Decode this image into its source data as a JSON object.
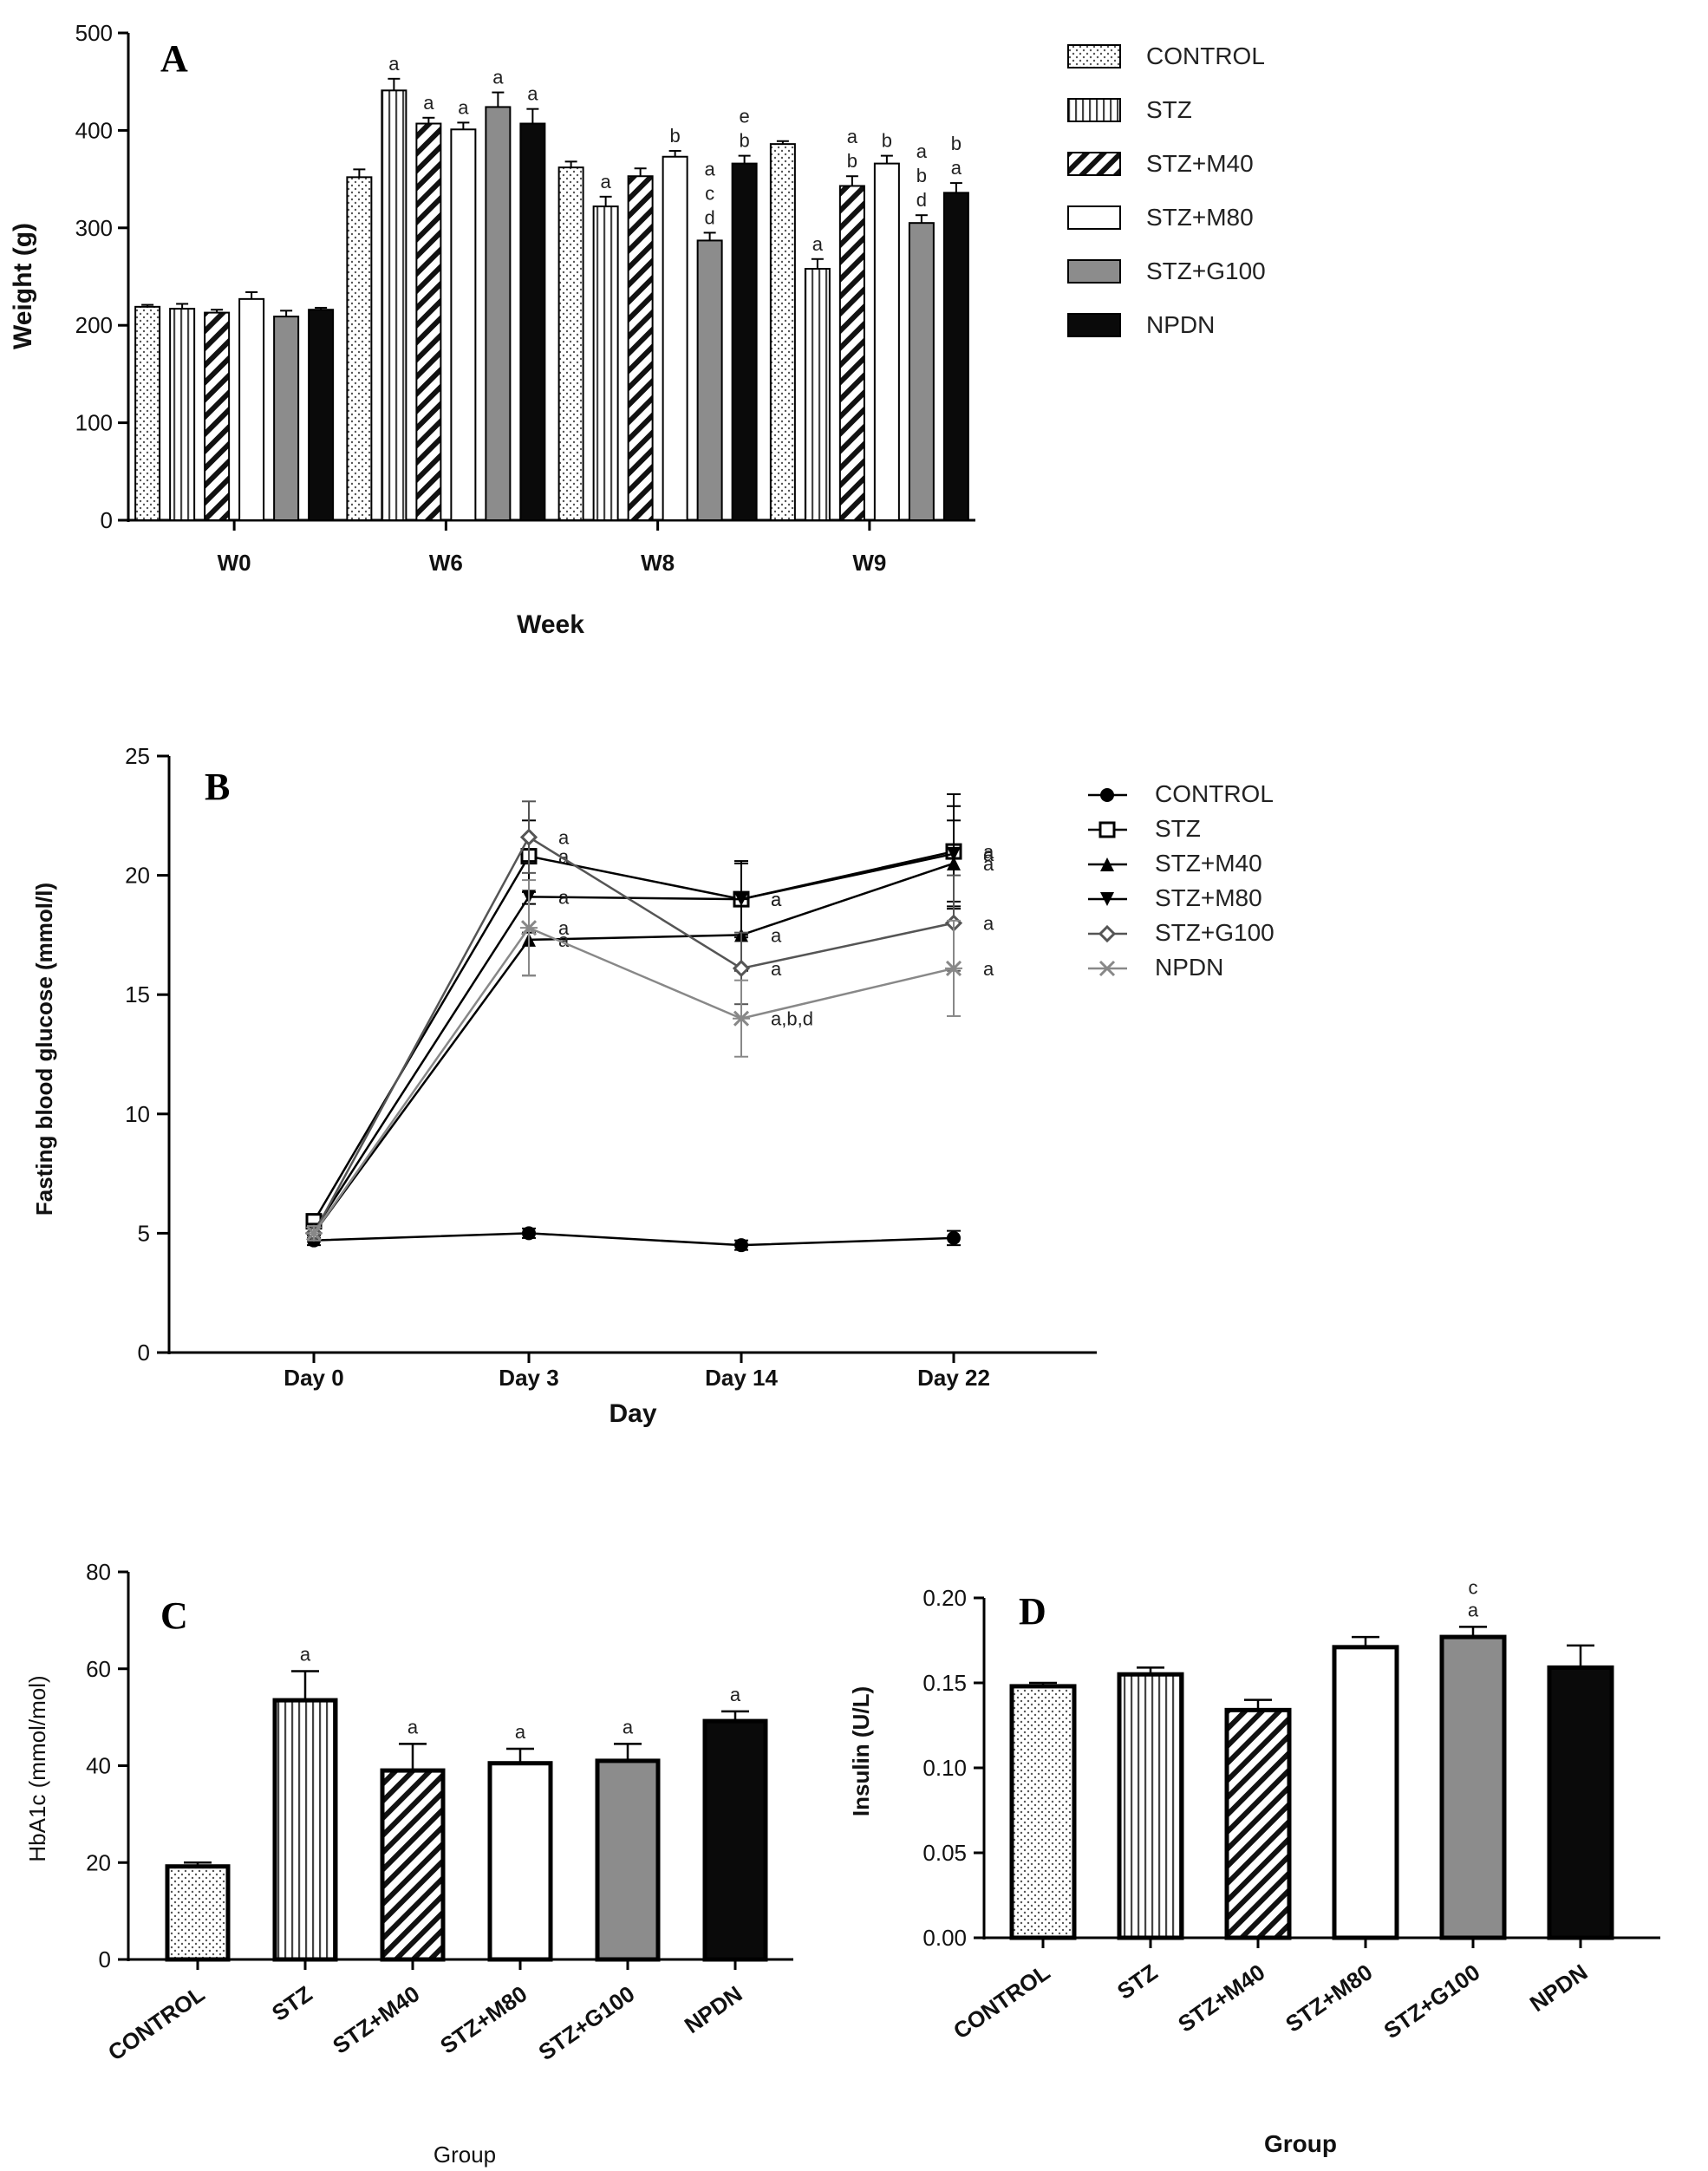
{
  "groups": [
    "CONTROL",
    "STZ",
    "STZ+M40",
    "STZ+M80",
    "STZ+G100",
    "NPDN"
  ],
  "group_fills": [
    "dots",
    "vlines",
    "diag",
    "white",
    "gray",
    "black"
  ],
  "chart_data": [
    {
      "id": "A",
      "type": "bar",
      "panel_label": "A",
      "xlabel": "Week",
      "ylabel": "Weight (g)",
      "ylim": [
        0,
        500
      ],
      "yticks": [
        0,
        100,
        200,
        300,
        400,
        500
      ],
      "categories": [
        "W0",
        "W6",
        "W8",
        "W9"
      ],
      "legend_position": "right",
      "series": [
        {
          "name": "CONTROL",
          "values": [
            219,
            352,
            362,
            386
          ],
          "errors": [
            2,
            8,
            6,
            3
          ],
          "sig": [
            "",
            "",
            "",
            ""
          ]
        },
        {
          "name": "STZ",
          "values": [
            217,
            441,
            322,
            258
          ],
          "errors": [
            5,
            12,
            10,
            10
          ],
          "sig": [
            "",
            "a",
            "a",
            "a"
          ]
        },
        {
          "name": "STZ+M40",
          "values": [
            213,
            407,
            353,
            343
          ],
          "errors": [
            3,
            6,
            8,
            10
          ],
          "sig": [
            "",
            "a",
            "",
            "a,b"
          ]
        },
        {
          "name": "STZ+M80",
          "values": [
            227,
            401,
            373,
            366
          ],
          "errors": [
            7,
            7,
            6,
            8
          ],
          "sig": [
            "",
            "a",
            "b",
            "b"
          ]
        },
        {
          "name": "STZ+G100",
          "values": [
            209,
            424,
            287,
            305
          ],
          "errors": [
            6,
            15,
            8,
            8
          ],
          "sig": [
            "",
            "a",
            "a,c,d",
            "a,b,d"
          ]
        },
        {
          "name": "NPDN",
          "values": [
            216,
            407,
            366,
            336
          ],
          "errors": [
            2,
            15,
            8,
            10
          ],
          "sig": [
            "",
            "a",
            "e,b",
            "b,a"
          ]
        }
      ]
    },
    {
      "id": "B",
      "type": "line",
      "panel_label": "B",
      "xlabel": "Day",
      "ylabel": "Fasting blood glucose (mmol/l)",
      "ylim": [
        0,
        25
      ],
      "yticks": [
        0,
        5,
        10,
        15,
        20,
        25
      ],
      "categories": [
        "Day 0",
        "Day 3",
        "Day 14",
        "Day 22"
      ],
      "legend_position": "right",
      "series": [
        {
          "name": "CONTROL",
          "marker": "circle",
          "values": [
            4.7,
            5.0,
            4.5,
            4.8
          ],
          "errors": [
            0.2,
            0.2,
            0.2,
            0.3
          ],
          "sig": [
            "",
            "",
            "",
            ""
          ]
        },
        {
          "name": "STZ",
          "marker": "square-open",
          "values": [
            5.5,
            20.8,
            19.0,
            21.0
          ],
          "errors": [
            0.3,
            1.5,
            1.6,
            2.4
          ],
          "sig": [
            "",
            "a",
            "a",
            "a"
          ]
        },
        {
          "name": "STZ+M40",
          "marker": "triangle-up",
          "values": [
            5.0,
            17.3,
            17.5,
            20.5
          ],
          "errors": [
            0.3,
            1.5,
            1.5,
            1.8
          ],
          "sig": [
            "",
            "a",
            "a",
            "a"
          ]
        },
        {
          "name": "STZ+M80",
          "marker": "triangle-down",
          "values": [
            5.1,
            19.1,
            19.0,
            20.9
          ],
          "errors": [
            0.3,
            1.5,
            1.5,
            2.0
          ],
          "sig": [
            "",
            "a",
            "a",
            "a"
          ]
        },
        {
          "name": "STZ+G100",
          "marker": "diamond-open",
          "values": [
            5.0,
            21.6,
            16.1,
            18.0
          ],
          "errors": [
            0.3,
            1.5,
            1.5,
            2.0
          ],
          "sig": [
            "",
            "a",
            "a",
            "a"
          ]
        },
        {
          "name": "NPDN",
          "marker": "x",
          "values": [
            5.0,
            17.8,
            14.0,
            16.1
          ],
          "errors": [
            0.3,
            2.0,
            1.6,
            2.0
          ],
          "sig": [
            "",
            "a",
            "a,b,d",
            "a"
          ]
        }
      ]
    },
    {
      "id": "C",
      "type": "bar",
      "panel_label": "C",
      "xlabel": "Group",
      "ylabel": "HbA1c (mmol/mol)",
      "ylim": [
        0,
        80
      ],
      "yticks": [
        0,
        20,
        40,
        60,
        80
      ],
      "categories": [
        "CONTROL",
        "STZ",
        "STZ+M40",
        "STZ+M80",
        "STZ+G100",
        "NPDN"
      ],
      "values": [
        19.2,
        53.5,
        39.0,
        40.5,
        41.0,
        49.2
      ],
      "errors": [
        0.8,
        6.0,
        5.5,
        3.0,
        3.5,
        2.0
      ],
      "sig": [
        "",
        "a",
        "a",
        "a",
        "a",
        "a"
      ]
    },
    {
      "id": "D",
      "type": "bar",
      "panel_label": "D",
      "xlabel": "Group",
      "ylabel": "Insulin (U/L)",
      "ylim": [
        0,
        0.2
      ],
      "yticks": [
        "0.00",
        "0.05",
        "0.10",
        "0.15",
        "0.20"
      ],
      "categories": [
        "CONTROL",
        "STZ",
        "STZ+M40",
        "STZ+M80",
        "STZ+G100",
        "NPDN"
      ],
      "values": [
        0.148,
        0.155,
        0.134,
        0.171,
        0.177,
        0.159
      ],
      "errors": [
        0.002,
        0.004,
        0.006,
        0.006,
        0.006,
        0.013
      ],
      "sig": [
        "",
        "",
        "",
        "",
        "c,a",
        ""
      ]
    }
  ]
}
